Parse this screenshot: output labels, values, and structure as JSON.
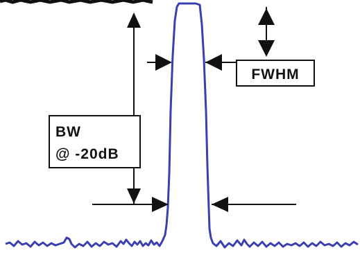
{
  "labels": {
    "fwhm": "FWHM",
    "bw_line1": "BW",
    "bw_line2": "@ -20dB"
  },
  "colors": {
    "trace": "#3b3fae",
    "annotation": "#111111",
    "background": "#ffffff"
  },
  "icons": {
    "arrowhead": "solid-triangle-arrowhead"
  }
}
